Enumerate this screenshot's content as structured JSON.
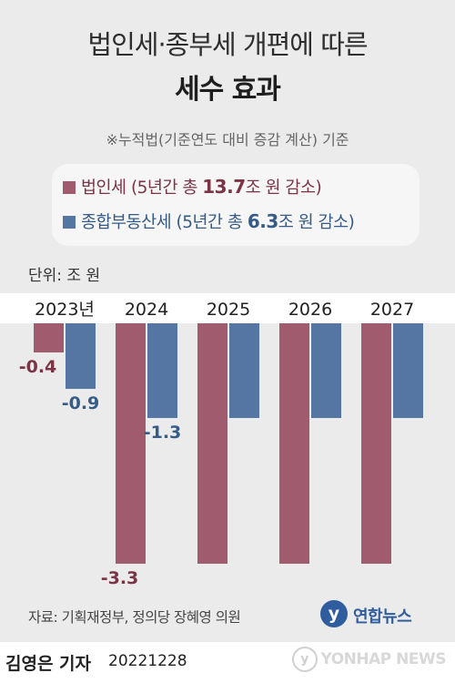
{
  "header": {
    "title_line1": "법인세·종부세 개편에 따른",
    "title_line2": "세수 효과",
    "note": "※누적법(기준연도 대비 증감 계산) 기준"
  },
  "legend": {
    "corp_prefix": "법인세 (5년간 총 ",
    "corp_value": "13.7",
    "corp_suffix": "조 원 감소)",
    "prop_prefix": "종합부동산세 (5년간 총 ",
    "prop_value": "6.3",
    "prop_suffix": "조 원 감소)"
  },
  "unit_label": "단위: 조 원",
  "colors": {
    "corp": "#a05c6e",
    "prop": "#5575a2",
    "corp_label": "#7a3446",
    "prop_label": "#365b86"
  },
  "chart_data": {
    "type": "bar",
    "categories": [
      "2023년",
      "2024",
      "2025",
      "2026",
      "2027"
    ],
    "series": [
      {
        "name": "법인세",
        "values": [
          -0.4,
          -3.3,
          -3.3,
          -3.3,
          -3.3
        ],
        "labels": [
          "-0.4",
          "-3.3",
          "",
          "",
          ""
        ]
      },
      {
        "name": "종합부동산세",
        "values": [
          -0.9,
          -1.3,
          -1.3,
          -1.3,
          -1.3
        ],
        "labels": [
          "-0.9",
          "-1.3",
          "",
          "",
          ""
        ]
      }
    ],
    "ylim": [
      -3.3,
      0
    ]
  },
  "footer": {
    "source": "자료: 기획재정부, 정의당 장혜영 의원",
    "brand_logo": "y",
    "brand_name": "연합뉴스",
    "author": "김영은 기자",
    "date": "20221228",
    "watermark": "YONHAP NEWS"
  }
}
